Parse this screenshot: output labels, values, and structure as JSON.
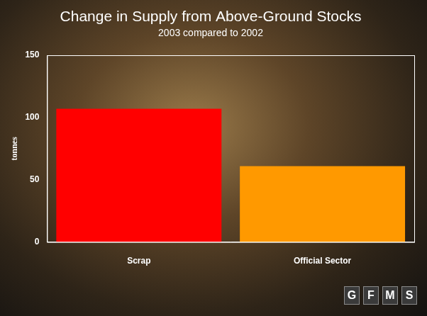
{
  "chart_data": {
    "type": "bar",
    "title": "Change in Supply from Above-Ground Stocks",
    "subtitle": "2003 compared to 2002",
    "y_label": "tonnes",
    "categories": [
      "Scrap",
      "Official Sector"
    ],
    "values": [
      107,
      61
    ],
    "colors": [
      "#ff0000",
      "#ff9900"
    ],
    "ylim": [
      0,
      150
    ],
    "yticks": [
      0,
      50,
      100,
      150
    ],
    "grid": false,
    "annotations": [
      "GFMS"
    ]
  }
}
